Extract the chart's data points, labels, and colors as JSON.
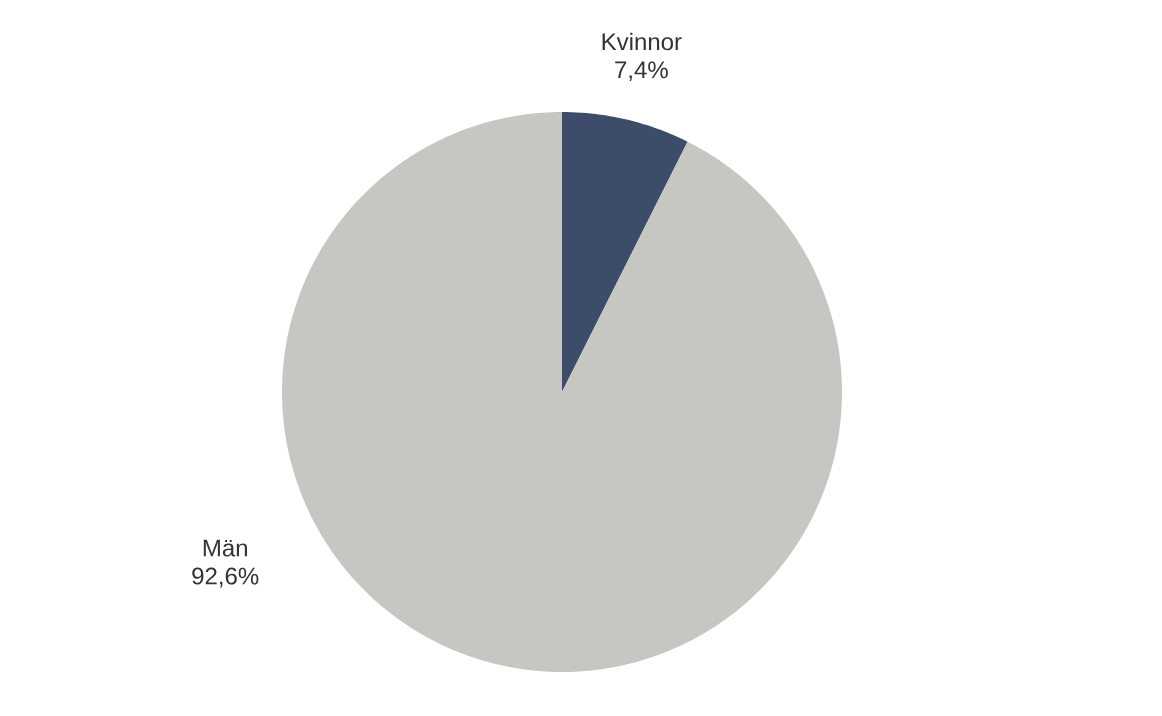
{
  "chart_data": {
    "type": "pie",
    "categories": [
      "Kvinnor",
      "Män"
    ],
    "values": [
      7.4,
      92.6
    ],
    "value_labels": [
      "7,4%",
      "92,6%"
    ],
    "colors": [
      "#3d4c69",
      "#c6c6c3"
    ]
  }
}
